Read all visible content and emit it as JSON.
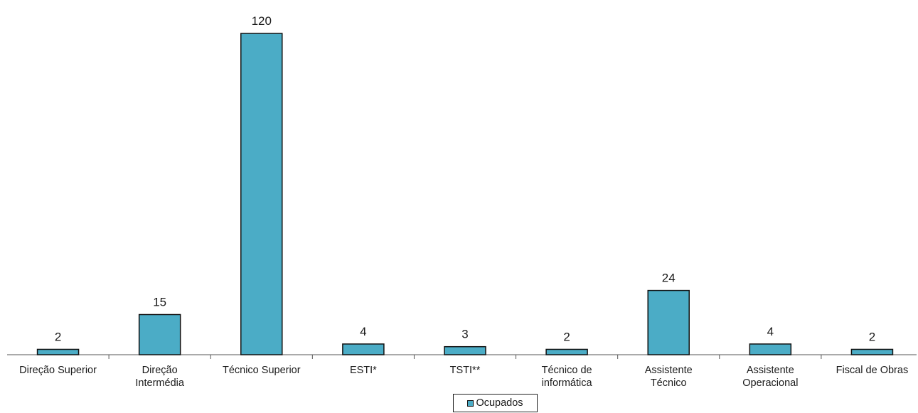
{
  "chart_data": {
    "type": "bar",
    "categories": [
      [
        "Direção Superior"
      ],
      [
        "Direção",
        "Intermédia"
      ],
      [
        "Técnico Superior"
      ],
      [
        "ESTI*"
      ],
      [
        "TSTI**"
      ],
      [
        "Técnico de",
        "informática"
      ],
      [
        "Assistente",
        "Técnico"
      ],
      [
        "Assistente",
        "Operacional"
      ],
      [
        "Fiscal de Obras"
      ]
    ],
    "series": [
      {
        "name": "Ocupados",
        "values": [
          2,
          15,
          120,
          4,
          3,
          2,
          24,
          4,
          2
        ]
      }
    ],
    "data_labels": true,
    "ylim": [
      0,
      120
    ],
    "grid": false,
    "legend_position": "bottom",
    "colors": {
      "bar": "#4bacc6",
      "bar_stroke": "#111111",
      "axis": "#555555"
    }
  }
}
